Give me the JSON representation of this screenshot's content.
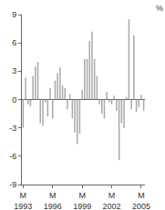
{
  "chart_data": {
    "type": "bar",
    "ylabel": "%",
    "categories": [
      "M\n1993",
      null,
      null,
      null,
      null,
      null,
      null,
      null,
      null,
      null,
      null,
      null,
      "M\n1996",
      null,
      null,
      null,
      null,
      null,
      null,
      null,
      null,
      null,
      null,
      null,
      "M\n1999",
      null,
      null,
      null,
      null,
      null,
      null,
      null,
      null,
      null,
      null,
      null,
      "M\n2002",
      null,
      null,
      null,
      null,
      null,
      null,
      null,
      null,
      null,
      null,
      null,
      "M\n2005",
      null
    ],
    "values": [
      -3.0,
      2.3,
      -0.5,
      -0.7,
      2.5,
      3.5,
      4.0,
      -2.5,
      -2.8,
      -0.3,
      -1.8,
      1.2,
      -2.0,
      2.0,
      2.8,
      3.4,
      1.5,
      1.2,
      -1.0,
      0.6,
      -2.0,
      -3.5,
      -4.7,
      -3.6,
      1.0,
      4.3,
      4.3,
      6.2,
      7.2,
      4.3,
      2.5,
      -0.5,
      -1.5,
      -2.0,
      0.8,
      -0.3,
      -0.5,
      0.4,
      -1.2,
      -6.4,
      -2.5,
      -3.0,
      0.3,
      8.5,
      -1.0,
      6.8,
      -1.3,
      -0.8,
      0.5,
      -1.2
    ],
    "color": "#a8a8a8",
    "ylim": [
      -9,
      9
    ],
    "yticks": [
      -9,
      -6,
      -3,
      0,
      3,
      6,
      9
    ],
    "grid": false
  }
}
